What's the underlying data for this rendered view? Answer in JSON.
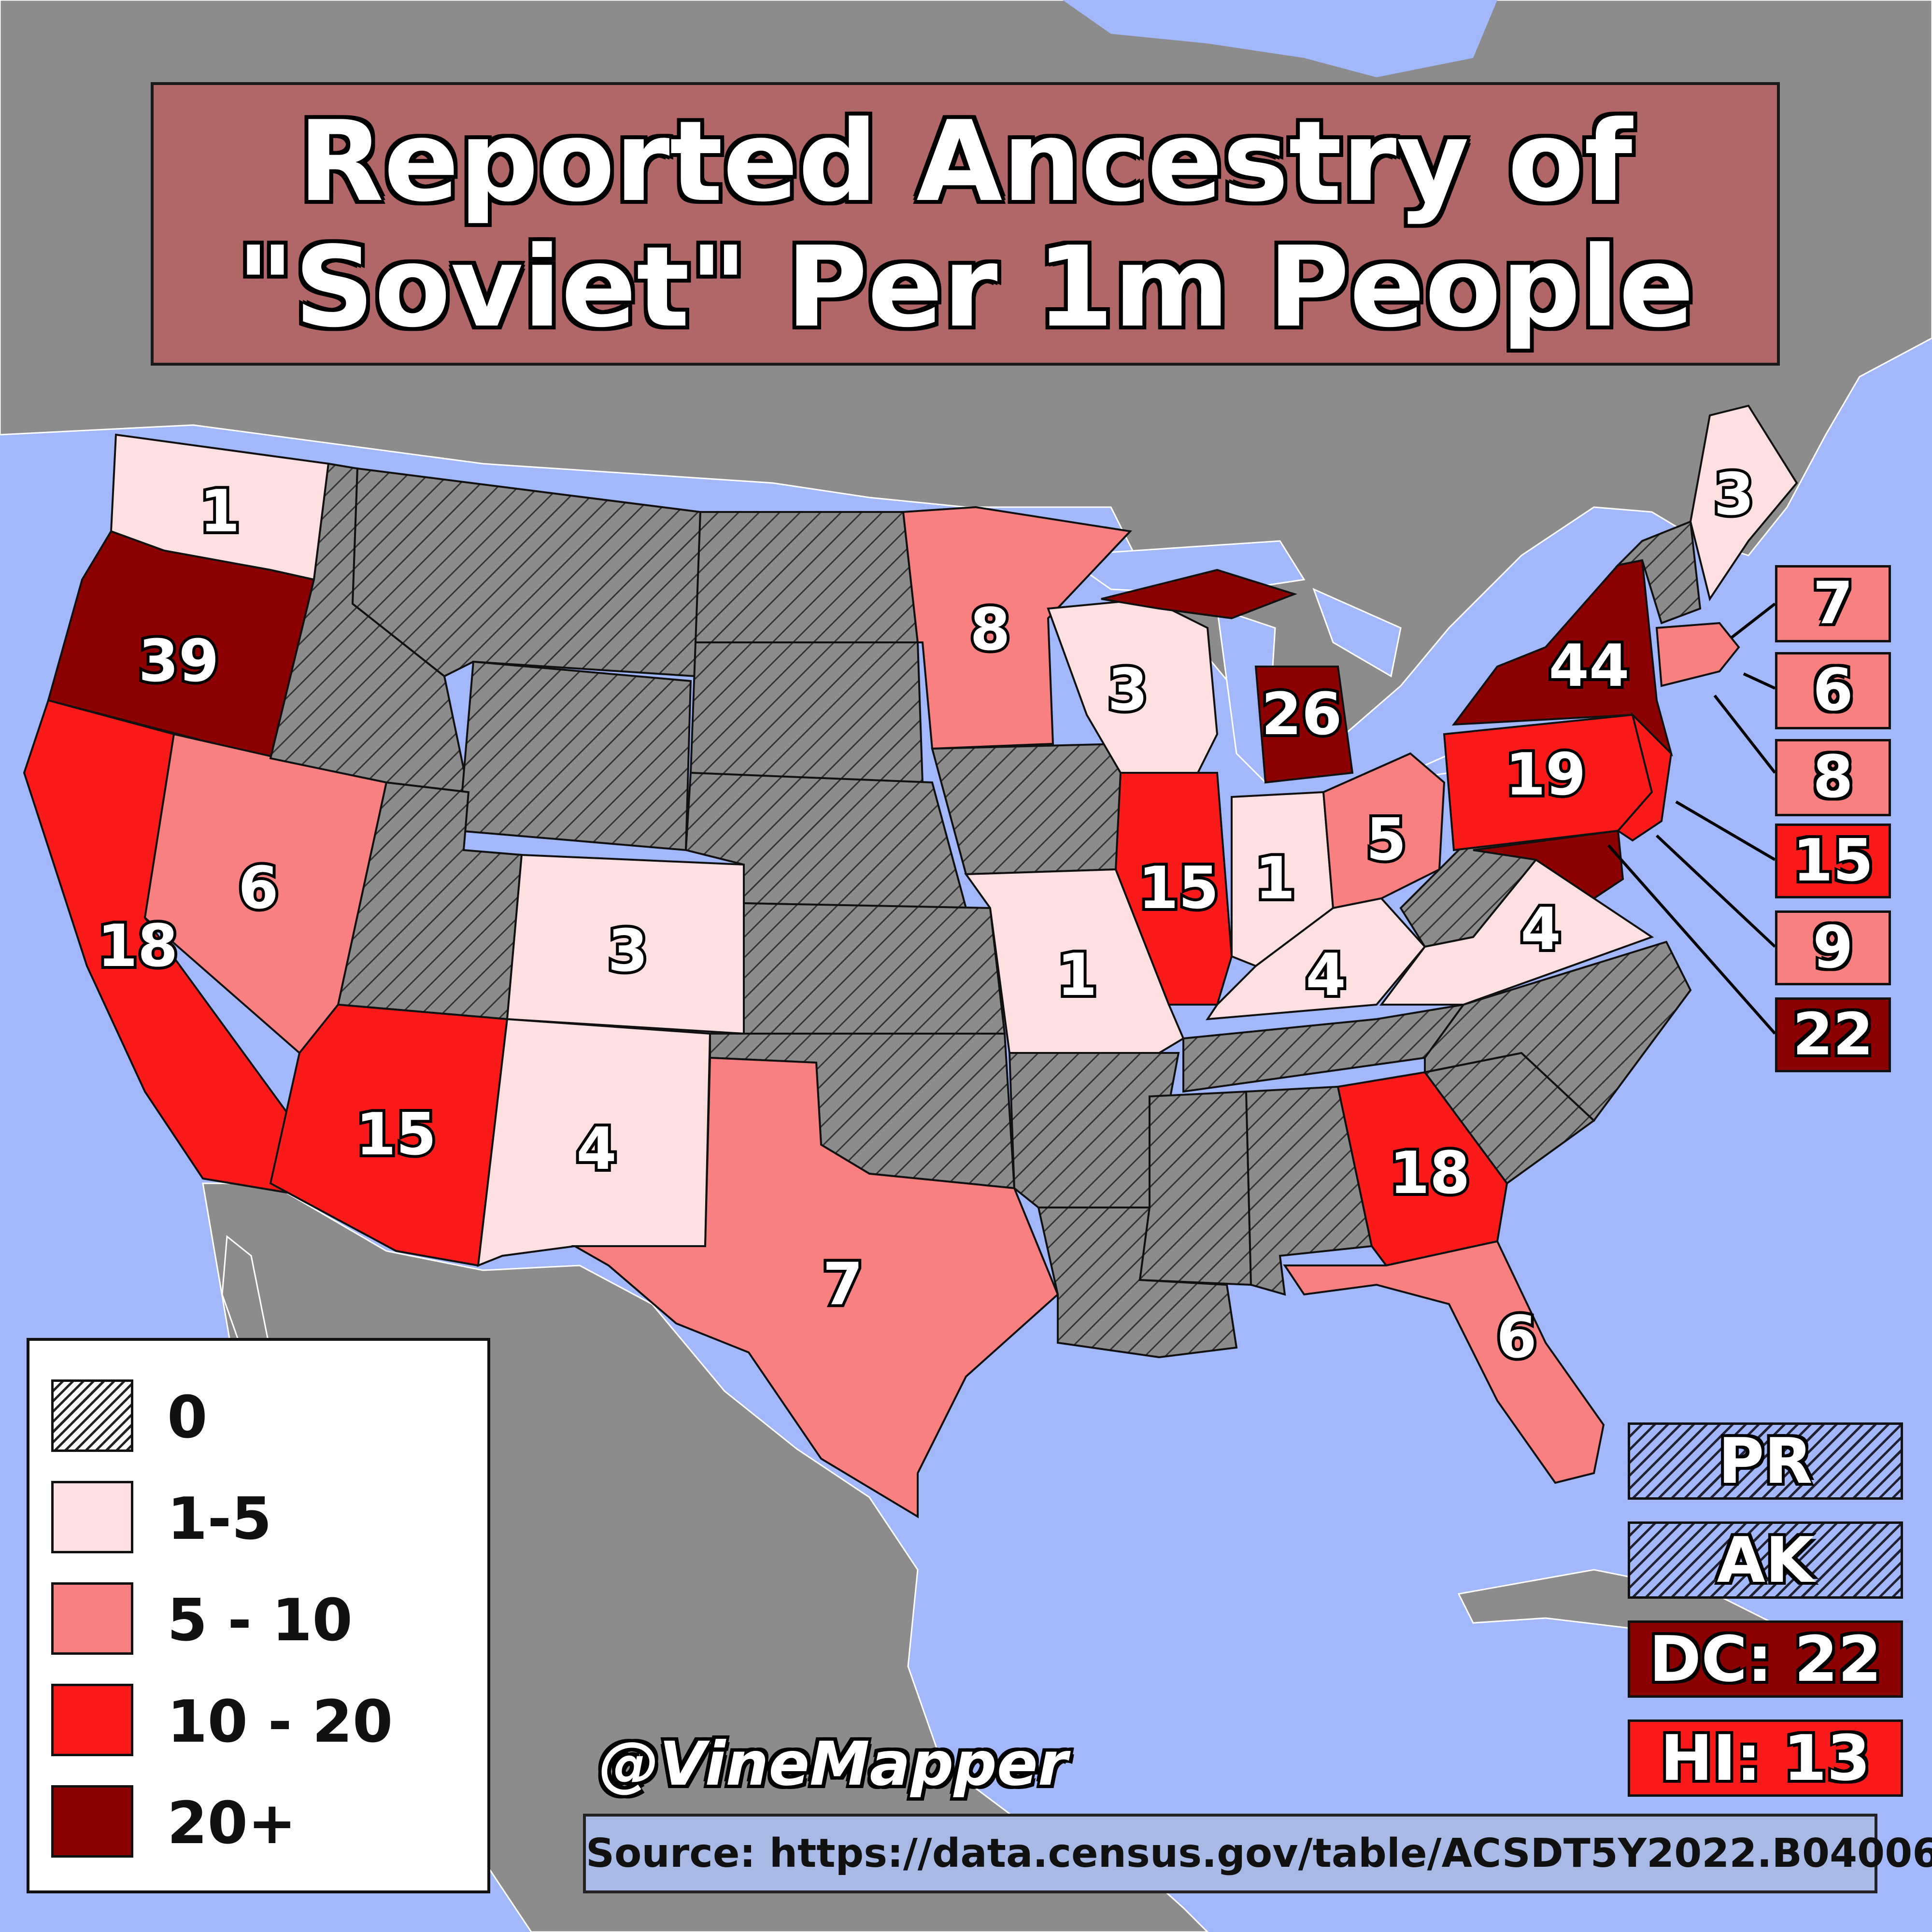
{
  "title": {
    "line1": "Reported Ancestry of",
    "line2": "\"Soviet\" Per 1m People"
  },
  "colors": {
    "ocean": "#a3b8fb",
    "land": "#8c8c8c",
    "zero": "#8c8c8c",
    "bin_1_5": "#ffe0e0",
    "bin_5_10": "#f98080",
    "bin_10_20": "#fa1a1a",
    "bin_20_plus": "#8b0000"
  },
  "legend": [
    {
      "label": "0",
      "swatch": "hatch"
    },
    {
      "label": "1-5",
      "swatch": "bin_1_5"
    },
    {
      "label": "5 - 10",
      "swatch": "bin_5_10"
    },
    {
      "label": "10 - 20",
      "swatch": "bin_10_20"
    },
    {
      "label": "20+",
      "swatch": "bin_20_plus"
    }
  ],
  "states": {
    "WA": "1",
    "OR": "39",
    "CA": "18",
    "NV": "6",
    "AZ": "15",
    "CO": "3",
    "NM": "4",
    "TX": "7",
    "MN": "8",
    "WI": "3",
    "MI": "26",
    "IL": "15",
    "IN": "1",
    "OH": "5",
    "MO": "1",
    "KY": "4",
    "VA": "4",
    "GA": "18",
    "FL": "6",
    "PA": "19",
    "NY": "44",
    "ME": "3"
  },
  "northeast_callouts": [
    {
      "state": "MA",
      "value": "7",
      "color": "bin_5_10"
    },
    {
      "state": "RI",
      "value": "6",
      "color": "bin_5_10"
    },
    {
      "state": "CT",
      "value": "8",
      "color": "bin_5_10"
    },
    {
      "state": "NJ",
      "value": "15",
      "color": "bin_10_20"
    },
    {
      "state": "DE",
      "value": "9",
      "color": "bin_5_10"
    },
    {
      "state": "MD",
      "value": "22",
      "color": "bin_20_plus"
    }
  ],
  "territories": [
    {
      "label": "PR"
    },
    {
      "label": "AK"
    }
  ],
  "extras": [
    {
      "label": "DC: 22",
      "color": "bin_20_plus"
    },
    {
      "label": "HI: 13",
      "color": "bin_10_20"
    }
  ],
  "credit": "@VineMapper",
  "source": "Source: https://data.census.gov/table/ACSDT5Y2022.B04006"
}
